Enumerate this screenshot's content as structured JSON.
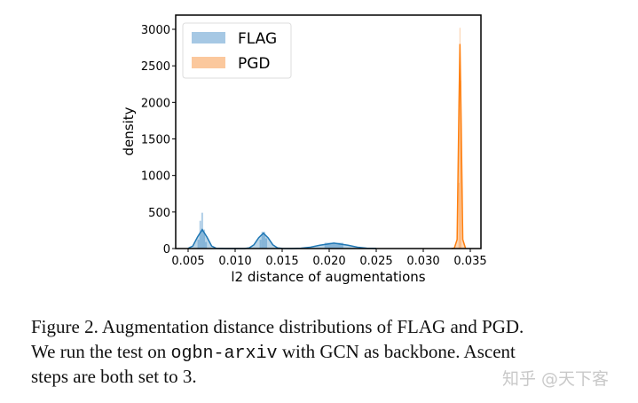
{
  "chart_data": {
    "type": "area",
    "xlabel": "l2 distance of augmentations",
    "ylabel": "density",
    "xlim": [
      0.0037,
      0.0361
    ],
    "ylim": [
      0,
      3200
    ],
    "xticks": [
      "0.005",
      "0.010",
      "0.015",
      "0.020",
      "0.025",
      "0.030",
      "0.035"
    ],
    "xtick_values": [
      0.005,
      0.01,
      0.015,
      0.02,
      0.025,
      0.03,
      0.035
    ],
    "yticks": [
      "0",
      "500",
      "1000",
      "1500",
      "2000",
      "2500",
      "3000"
    ],
    "ytick_values": [
      0,
      500,
      1000,
      1500,
      2000,
      2500,
      3000
    ],
    "grid": false,
    "legend_position": "top-left",
    "series": [
      {
        "name": "FLAG",
        "color": "#1f77b4",
        "hist_color": "#a6c8e4",
        "kde_x": [
          0.005,
          0.0055,
          0.006,
          0.0065,
          0.007,
          0.0075,
          0.008,
          0.009,
          0.011,
          0.0115,
          0.012,
          0.0125,
          0.013,
          0.0135,
          0.014,
          0.0145,
          0.015,
          0.016,
          0.017,
          0.018,
          0.019,
          0.0205,
          0.022,
          0.023,
          0.024,
          0.025
        ],
        "kde_y": [
          3,
          35,
          158,
          260,
          158,
          35,
          3,
          0,
          0,
          9,
          52,
          148,
          210,
          148,
          52,
          9,
          1,
          0,
          5,
          19,
          45,
          75,
          45,
          19,
          5,
          1
        ],
        "hist_bins": [
          [
            0.006,
            0.0062,
            120
          ],
          [
            0.0062,
            0.0064,
            380
          ],
          [
            0.0064,
            0.0066,
            490
          ],
          [
            0.0066,
            0.0068,
            260
          ],
          [
            0.0068,
            0.007,
            90
          ],
          [
            0.0126,
            0.0128,
            120
          ],
          [
            0.0128,
            0.0132,
            230
          ],
          [
            0.0132,
            0.0134,
            140
          ],
          [
            0.0195,
            0.0215,
            80
          ]
        ]
      },
      {
        "name": "PGD",
        "color": "#ff7f0e",
        "hist_color": "#fbc89d",
        "kde_x": [
          0.033,
          0.0333,
          0.0336,
          0.0338,
          0.0339,
          0.034,
          0.0342,
          0.0345
        ],
        "kde_y": [
          0,
          5,
          123,
          1985,
          2800,
          1985,
          123,
          0
        ],
        "hist_bins": [
          [
            0.03375,
            0.03385,
            900
          ],
          [
            0.03385,
            0.03395,
            3020
          ],
          [
            0.03395,
            0.03405,
            2300
          ]
        ]
      }
    ]
  },
  "caption": {
    "line1": "Figure 2. Augmentation distance distributions of FLAG and PGD.",
    "line2_pre": "We run the test on ",
    "line2_code": "ogbn-arxiv",
    "line2_post": " with GCN as backbone. Ascent",
    "line3": "steps are both set to 3."
  },
  "watermark": "知乎 @天下客"
}
